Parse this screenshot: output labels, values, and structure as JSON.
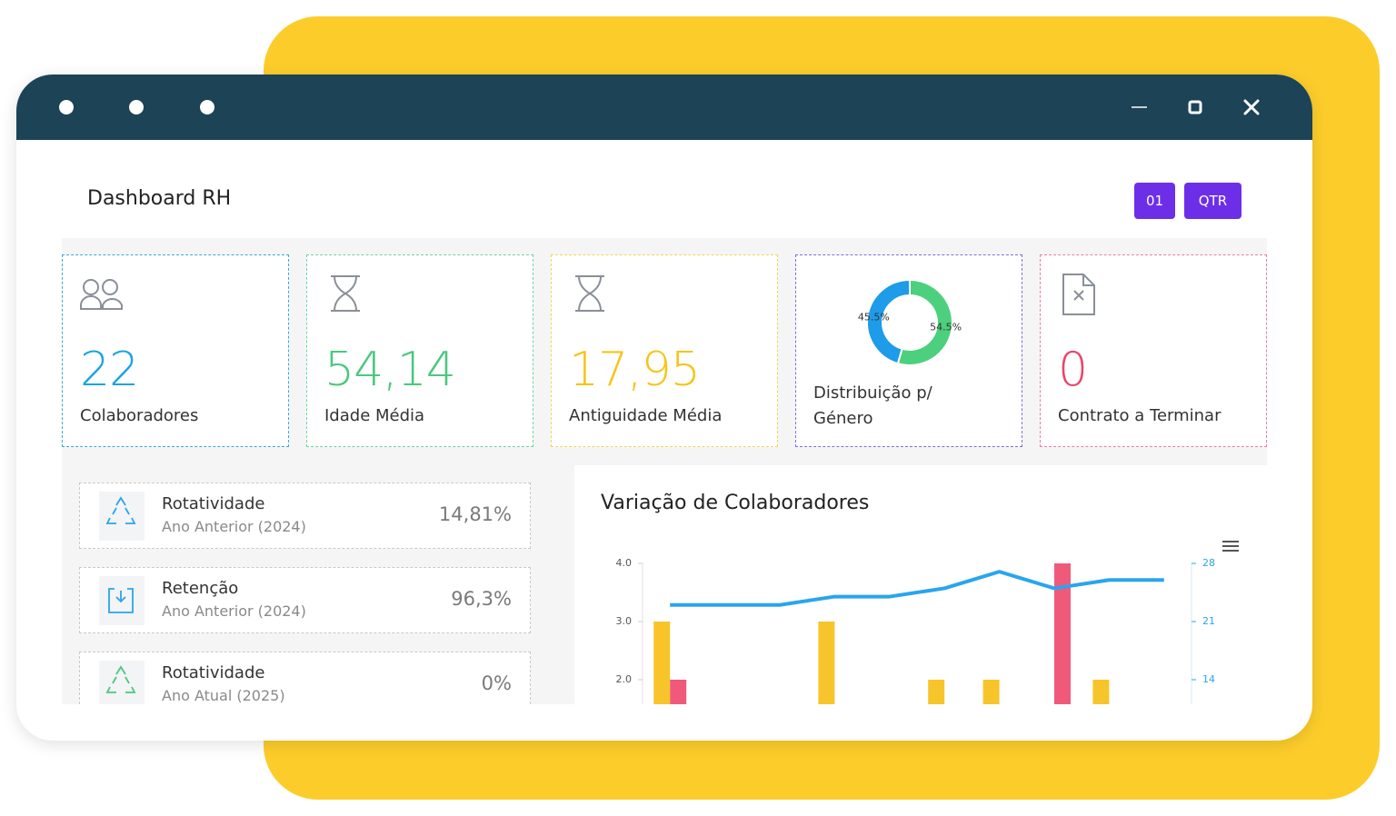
{
  "header": {
    "title": "Dashboard RH",
    "buttons": [
      "01",
      "QTR"
    ]
  },
  "kpis": [
    {
      "value": "22",
      "label": "Colaboradores"
    },
    {
      "value": "54,14",
      "label": "Idade Média"
    },
    {
      "value": "17,95",
      "label": "Antiguidade Média"
    },
    {
      "value": "0",
      "label": "Contrato a Terminar"
    }
  ],
  "indicators": [
    {
      "title": "Rotatividade",
      "subtitle": "Ano Anterior (2024)",
      "value": "14,81%"
    },
    {
      "title": "Retenção",
      "subtitle": "Ano Anterior (2024)",
      "value": "96,3%"
    },
    {
      "title": "Rotatividade",
      "subtitle": "Ano Atual (2025)",
      "value": "0%"
    }
  ],
  "chart_data": [
    {
      "type": "pie",
      "title": "Distribuição p/ Género",
      "values": [
        45.5,
        54.5
      ],
      "value_labels": [
        "45.5%",
        "54.5%"
      ],
      "colors": [
        "#1e9be9",
        "#4cd07d"
      ]
    },
    {
      "type": "bar",
      "title": "Variação de Colaboradores",
      "categories": [
        null,
        null,
        null,
        null,
        null,
        null,
        null,
        null,
        null,
        null
      ],
      "series": [
        {
          "color": "#f7c52b",
          "type": "bar",
          "values": [
            3,
            0,
            0,
            3,
            0,
            2,
            2,
            0,
            2,
            0
          ]
        },
        {
          "color": "#ef5a7a",
          "type": "bar",
          "values": [
            2,
            0,
            0,
            0,
            0,
            0,
            0,
            4,
            0,
            0
          ]
        },
        {
          "color": "#2aa5ec",
          "type": "line",
          "axis": "y2",
          "values": [
            23,
            23,
            23,
            24,
            24,
            25,
            27,
            25,
            26,
            26
          ]
        }
      ],
      "ylim": [
        0,
        4
      ],
      "yticks": [
        {
          "value": 2,
          "label": "2.0"
        },
        {
          "value": 3,
          "label": "3.0"
        },
        {
          "value": 4,
          "label": "4.0"
        }
      ],
      "y2lim": [
        0,
        28
      ],
      "y2ticks": [
        14,
        21,
        28
      ]
    }
  ]
}
